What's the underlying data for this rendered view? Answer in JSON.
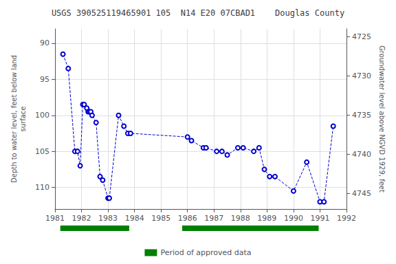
{
  "chart_data": {
    "type": "line",
    "title": "USGS 390525119465901 105  N14 E20 07CBAD1    Douglas County",
    "ylabel": "Depth to water level, feet below land\nsurface",
    "y2label": "Groundwater level above NGVD 1929, feet",
    "x": [
      1981.3,
      1981.5,
      1981.75,
      1981.85,
      1981.95,
      1982.05,
      1982.1,
      1982.2,
      1982.25,
      1982.3,
      1982.35,
      1982.4,
      1982.55,
      1982.7,
      1982.8,
      1983.0,
      1983.05,
      1983.4,
      1983.6,
      1983.75,
      1983.85,
      1986.0,
      1986.15,
      1986.6,
      1986.7,
      1987.1,
      1987.3,
      1987.5,
      1987.9,
      1988.1,
      1988.5,
      1988.7,
      1988.9,
      1989.1,
      1989.3,
      1990.0,
      1990.5,
      1991.0,
      1991.15,
      1991.5
    ],
    "series": [
      {
        "type": "line",
        "color": "#0000CC",
        "marker": "circle",
        "line_style": "dashed",
        "values": [
          91.5,
          93.5,
          105.0,
          105.0,
          107.0,
          98.5,
          98.5,
          99.0,
          99.5,
          99.5,
          99.5,
          100.0,
          101.0,
          108.5,
          109.0,
          111.5,
          111.5,
          100.0,
          101.5,
          102.5,
          102.5,
          103.0,
          103.5,
          104.5,
          104.5,
          105.0,
          105.0,
          105.5,
          104.5,
          104.5,
          105.0,
          104.5,
          107.5,
          108.5,
          108.5,
          110.5,
          106.5,
          112.0,
          112.0,
          101.5
        ]
      },
      {
        "type": "range",
        "name": "Period of approved data",
        "color": "#008000",
        "ranges": [
          [
            1981.2,
            1983.8
          ],
          [
            1985.8,
            1990.95
          ]
        ]
      }
    ],
    "xlim": [
      1981,
      1992
    ],
    "xticks": [
      1981,
      1982,
      1983,
      1984,
      1985,
      1986,
      1987,
      1988,
      1989,
      1990,
      1991,
      1992
    ],
    "ylim": [
      113,
      88
    ],
    "yticks": [
      90,
      95,
      100,
      105,
      110
    ],
    "y2lim": [
      4747,
      4724
    ],
    "y2ticks": [
      4725,
      4730,
      4735,
      4740,
      4745
    ],
    "grid": true,
    "legend": "bottom"
  }
}
